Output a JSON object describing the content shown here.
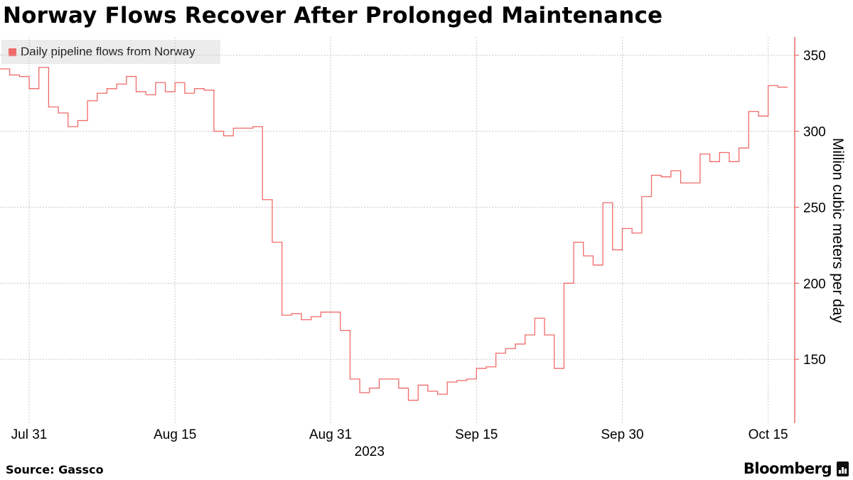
{
  "title": "Norway Flows Recover After Prolonged Maintenance",
  "source": "Source: Gassco",
  "brand": "Bloomberg",
  "colors": {
    "series": "#f06a6a",
    "axis": "#f06a6a",
    "grid": "#c8c8c8",
    "legend_bg": "#ececec"
  },
  "chart_data": {
    "type": "line",
    "style": "step",
    "ylabel": "Million cubic meters per day",
    "xlabel": "",
    "year_label": "2023",
    "x_ticks": [
      "Jul 31",
      "Aug 15",
      "Aug 31",
      "Sep 15",
      "Sep 30",
      "Oct 15"
    ],
    "y_ticks": [
      150,
      200,
      250,
      300,
      350
    ],
    "ylim": [
      108,
      362
    ],
    "xlim": [
      "Jul 28",
      "Oct 16"
    ],
    "grid": true,
    "legend_position": "top-left",
    "series": [
      {
        "name": "Daily pipeline flows from Norway",
        "x": [
          "Jul 28",
          "Jul 29",
          "Jul 30",
          "Jul 31",
          "Aug 1",
          "Aug 2",
          "Aug 3",
          "Aug 4",
          "Aug 5",
          "Aug 6",
          "Aug 7",
          "Aug 8",
          "Aug 9",
          "Aug 10",
          "Aug 11",
          "Aug 12",
          "Aug 13",
          "Aug 14",
          "Aug 15",
          "Aug 16",
          "Aug 17",
          "Aug 18",
          "Aug 19",
          "Aug 20",
          "Aug 21",
          "Aug 22",
          "Aug 23",
          "Aug 24",
          "Aug 25",
          "Aug 26",
          "Aug 27",
          "Aug 28",
          "Aug 29",
          "Aug 30",
          "Aug 31",
          "Sep 1",
          "Sep 2",
          "Sep 3",
          "Sep 4",
          "Sep 5",
          "Sep 6",
          "Sep 7",
          "Sep 8",
          "Sep 9",
          "Sep 10",
          "Sep 11",
          "Sep 12",
          "Sep 13",
          "Sep 14",
          "Sep 15",
          "Sep 16",
          "Sep 17",
          "Sep 18",
          "Sep 19",
          "Sep 20",
          "Sep 21",
          "Sep 22",
          "Sep 23",
          "Sep 24",
          "Sep 25",
          "Sep 26",
          "Sep 27",
          "Sep 28",
          "Sep 29",
          "Sep 30",
          "Oct 1",
          "Oct 2",
          "Oct 3",
          "Oct 4",
          "Oct 5",
          "Oct 6",
          "Oct 7",
          "Oct 8",
          "Oct 9",
          "Oct 10",
          "Oct 11",
          "Oct 12",
          "Oct 13",
          "Oct 14",
          "Oct 15",
          "Oct 16"
        ],
        "values": [
          341,
          337,
          336,
          328,
          342,
          316,
          312,
          303,
          307,
          320,
          325,
          328,
          331,
          336,
          326,
          324,
          332,
          326,
          332,
          325,
          328,
          327,
          300,
          297,
          302,
          302,
          303,
          255,
          227,
          179,
          180,
          176,
          178,
          181,
          181,
          169,
          137,
          128,
          131,
          137,
          137,
          131,
          123,
          133,
          129,
          127,
          135,
          136,
          137,
          144,
          145,
          154,
          157,
          160,
          166,
          177,
          166,
          144,
          200,
          227,
          218,
          212,
          253,
          222,
          236,
          233,
          257,
          271,
          270,
          274,
          266,
          266,
          285,
          280,
          286,
          280,
          289,
          313,
          310,
          330,
          329
        ]
      }
    ]
  }
}
